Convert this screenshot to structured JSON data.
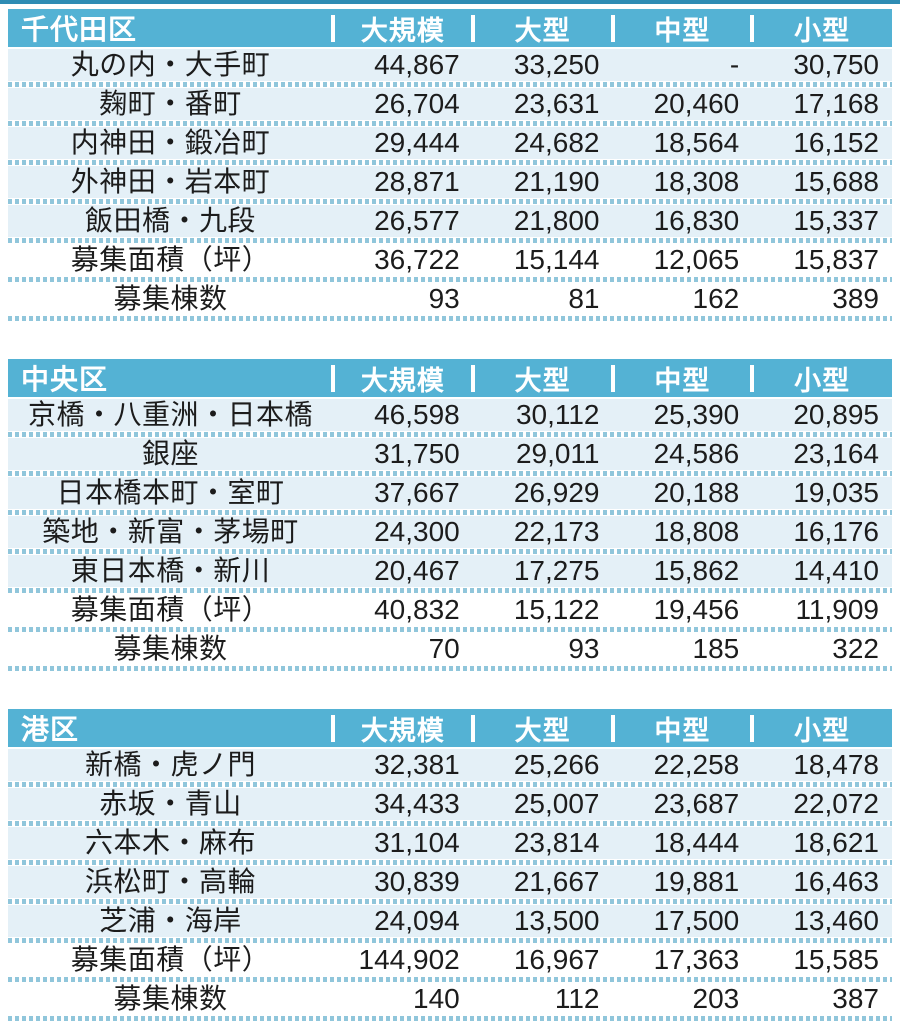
{
  "colors": {
    "top_strip": "#2e8cb4",
    "header_bg": "#54b2d4",
    "header_text": "#ffffff",
    "row_tint": "#e4f0f7",
    "divider_dot": "#90c6db",
    "text": "#1c1c1c"
  },
  "columns": [
    "大規模",
    "大型",
    "中型",
    "小型"
  ],
  "tables": [
    {
      "ward": "千代田区",
      "rows": [
        {
          "label": "丸の内・大手町",
          "values": [
            "44,867",
            "33,250",
            "-",
            "30,750"
          ],
          "summary": false
        },
        {
          "label": "麹町・番町",
          "values": [
            "26,704",
            "23,631",
            "20,460",
            "17,168"
          ],
          "summary": false
        },
        {
          "label": "内神田・鍛冶町",
          "values": [
            "29,444",
            "24,682",
            "18,564",
            "16,152"
          ],
          "summary": false
        },
        {
          "label": "外神田・岩本町",
          "values": [
            "28,871",
            "21,190",
            "18,308",
            "15,688"
          ],
          "summary": false
        },
        {
          "label": "飯田橋・九段",
          "values": [
            "26,577",
            "21,800",
            "16,830",
            "15,337"
          ],
          "summary": false
        },
        {
          "label": "募集面積（坪）",
          "values": [
            "36,722",
            "15,144",
            "12,065",
            "15,837"
          ],
          "summary": true
        },
        {
          "label": "募集棟数",
          "values": [
            "93",
            "81",
            "162",
            "389"
          ],
          "summary": true
        }
      ]
    },
    {
      "ward": "中央区",
      "rows": [
        {
          "label": "京橋・八重洲・日本橋",
          "values": [
            "46,598",
            "30,112",
            "25,390",
            "20,895"
          ],
          "summary": false
        },
        {
          "label": "銀座",
          "values": [
            "31,750",
            "29,011",
            "24,586",
            "23,164"
          ],
          "summary": false
        },
        {
          "label": "日本橋本町・室町",
          "values": [
            "37,667",
            "26,929",
            "20,188",
            "19,035"
          ],
          "summary": false
        },
        {
          "label": "築地・新富・茅場町",
          "values": [
            "24,300",
            "22,173",
            "18,808",
            "16,176"
          ],
          "summary": false
        },
        {
          "label": "東日本橋・新川",
          "values": [
            "20,467",
            "17,275",
            "15,862",
            "14,410"
          ],
          "summary": false
        },
        {
          "label": "募集面積（坪）",
          "values": [
            "40,832",
            "15,122",
            "19,456",
            "11,909"
          ],
          "summary": true
        },
        {
          "label": "募集棟数",
          "values": [
            "70",
            "93",
            "185",
            "322"
          ],
          "summary": true
        }
      ]
    },
    {
      "ward": "港区",
      "rows": [
        {
          "label": "新橋・虎ノ門",
          "values": [
            "32,381",
            "25,266",
            "22,258",
            "18,478"
          ],
          "summary": false
        },
        {
          "label": "赤坂・青山",
          "values": [
            "34,433",
            "25,007",
            "23,687",
            "22,072"
          ],
          "summary": false
        },
        {
          "label": "六本木・麻布",
          "values": [
            "31,104",
            "23,814",
            "18,444",
            "18,621"
          ],
          "summary": false
        },
        {
          "label": "浜松町・高輪",
          "values": [
            "30,839",
            "21,667",
            "19,881",
            "16,463"
          ],
          "summary": false
        },
        {
          "label": "芝浦・海岸",
          "values": [
            "24,094",
            "13,500",
            "17,500",
            "13,460"
          ],
          "summary": false
        },
        {
          "label": "募集面積（坪）",
          "values": [
            "144,902",
            "16,967",
            "17,363",
            "15,585"
          ],
          "summary": true
        },
        {
          "label": "募集棟数",
          "values": [
            "140",
            "112",
            "203",
            "387"
          ],
          "summary": true
        }
      ]
    }
  ]
}
